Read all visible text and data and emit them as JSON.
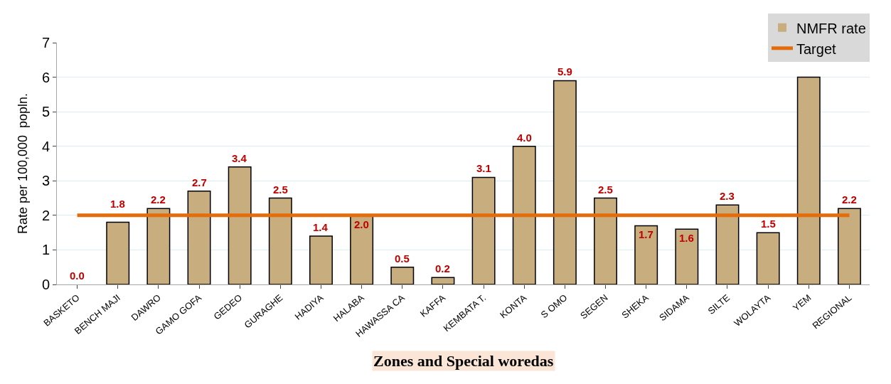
{
  "chart_data": {
    "type": "bar",
    "categories": [
      "BASKETO",
      "BENCH MAJI",
      "DAWRO",
      "GAMO GOFA",
      "GEDEO",
      "GURAGHE",
      "HADIYA",
      "HALABA",
      "HAWASSA CA",
      "KAFFA",
      "KEMBATA T.",
      "KONTA",
      "S OMO",
      "SEGEN",
      "SHEKA",
      "SIDAMA",
      "SILTE",
      "WOLAYTA",
      "YEM",
      "REGIONAL"
    ],
    "series": [
      {
        "name": "NMFR rate",
        "color": "#c8ad7f",
        "values": [
          0.0,
          1.8,
          2.2,
          2.7,
          3.4,
          2.5,
          1.4,
          2.0,
          0.5,
          0.2,
          3.1,
          4.0,
          5.9,
          2.5,
          1.7,
          1.6,
          2.3,
          1.5,
          6.0,
          2.2
        ],
        "value_labels": [
          "0.0",
          "1.8",
          "2.2",
          "2.7",
          "3.4",
          "2.5",
          "1.4",
          "2.0",
          "0.5",
          "0.2",
          "3.1",
          "4.0",
          "5.9",
          "2.5",
          "1.7",
          "1.6",
          "2.3",
          "1.5",
          null,
          "2.2"
        ]
      },
      {
        "name": "Target",
        "type": "line",
        "color": "#e46c0a",
        "values": [
          2,
          2,
          2,
          2,
          2,
          2,
          2,
          2,
          2,
          2,
          2,
          2,
          2,
          2,
          2,
          2,
          2,
          2,
          2,
          2
        ]
      }
    ],
    "xlabel": "Zones and Special woredas",
    "ylabel": "Rate per 100,000  popln.",
    "ylim": [
      0,
      7
    ],
    "yticks": [
      0,
      1,
      2,
      3,
      4,
      5,
      6,
      7
    ],
    "grid": "y",
    "legend": "top right"
  }
}
